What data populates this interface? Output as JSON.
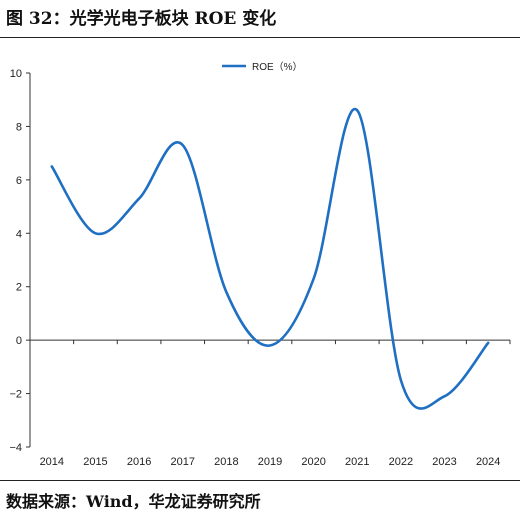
{
  "header": {
    "title": "图 32：光学光电子板块 ROE 变化"
  },
  "footer": {
    "source": "数据来源：Wind，华龙证券研究所"
  },
  "chart_data": {
    "type": "line",
    "title": "",
    "xlabel": "",
    "ylabel": "",
    "categories": [
      "2014",
      "2015",
      "2016",
      "2017",
      "2018",
      "2019",
      "2020",
      "2021",
      "2022",
      "2023",
      "2024"
    ],
    "series": [
      {
        "name": "ROE（%）",
        "color": "#1f6fc2",
        "values": [
          6.5,
          4.0,
          5.3,
          7.3,
          1.8,
          -0.2,
          2.3,
          8.6,
          -1.5,
          -2.1,
          -0.1
        ]
      }
    ],
    "ylim": [
      -4,
      10
    ],
    "yticks": [
      -4,
      -2,
      0,
      2,
      4,
      6,
      8,
      10
    ],
    "ytick_labels": [
      "−4",
      "−2",
      "0",
      "2",
      "4",
      "6",
      "8",
      "10"
    ],
    "legend": "top-center",
    "grid": false
  }
}
